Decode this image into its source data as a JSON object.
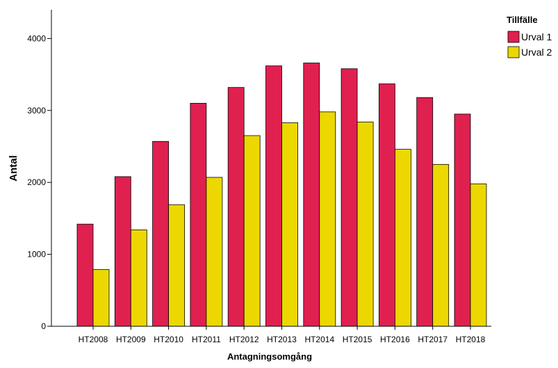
{
  "chart_data": {
    "type": "bar",
    "xlabel": "Antagningsomgång",
    "ylabel": "Antal",
    "ylim": [
      0,
      4400
    ],
    "yticks": [
      0,
      1000,
      2000,
      3000,
      4000
    ],
    "grid": false,
    "legend_title": "Tillfälle",
    "legend_position": "top-right",
    "categories": [
      "HT2008",
      "HT2009",
      "HT2010",
      "HT2011",
      "HT2012",
      "HT2013",
      "HT2014",
      "HT2015",
      "HT2016",
      "HT2017",
      "HT2018"
    ],
    "series": [
      {
        "name": "Urval 1",
        "color": "#e0204f",
        "values": [
          1420,
          2080,
          2570,
          3100,
          3320,
          3620,
          3660,
          3580,
          3370,
          3180,
          2950
        ]
      },
      {
        "name": "Urval 2",
        "color": "#ecd800",
        "values": [
          790,
          1340,
          1690,
          2070,
          2650,
          2830,
          2980,
          2840,
          2460,
          2250,
          1980
        ]
      }
    ]
  }
}
